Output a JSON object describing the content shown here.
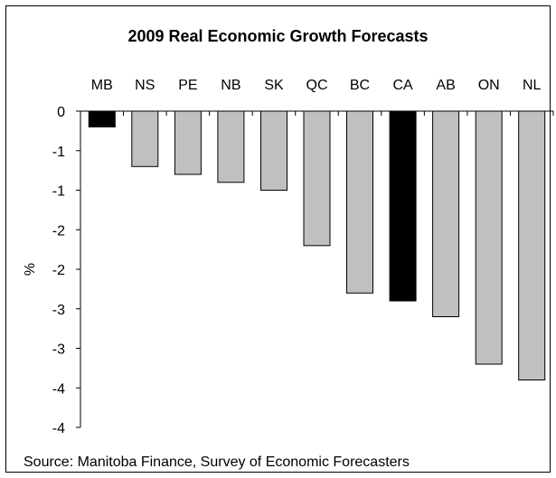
{
  "chart_data": {
    "type": "bar",
    "title": "2009 Real Economic Growth Forecasts",
    "ylabel": "%",
    "source": "Source: Manitoba Finance, Survey of Economic Forecasters",
    "categories": [
      "MB",
      "NS",
      "PE",
      "NB",
      "SK",
      "QC",
      "BC",
      "CA",
      "AB",
      "ON",
      "NL"
    ],
    "values": [
      -0.2,
      -0.7,
      -0.8,
      -0.9,
      -1.0,
      -1.7,
      -2.3,
      -2.4,
      -2.6,
      -3.2,
      -3.4
    ],
    "highlight": [
      "MB",
      "CA"
    ],
    "ytick_labels": [
      "0",
      "-1",
      "-1",
      "-2",
      "-2",
      "-3",
      "-3",
      "-4",
      "-4"
    ],
    "ylim": [
      -4,
      0
    ],
    "x_axis_position": "top",
    "grid": false,
    "colors": {
      "default_bar": "#c0c0c0",
      "highlight_bar": "#000000",
      "edge": "#000000"
    }
  }
}
